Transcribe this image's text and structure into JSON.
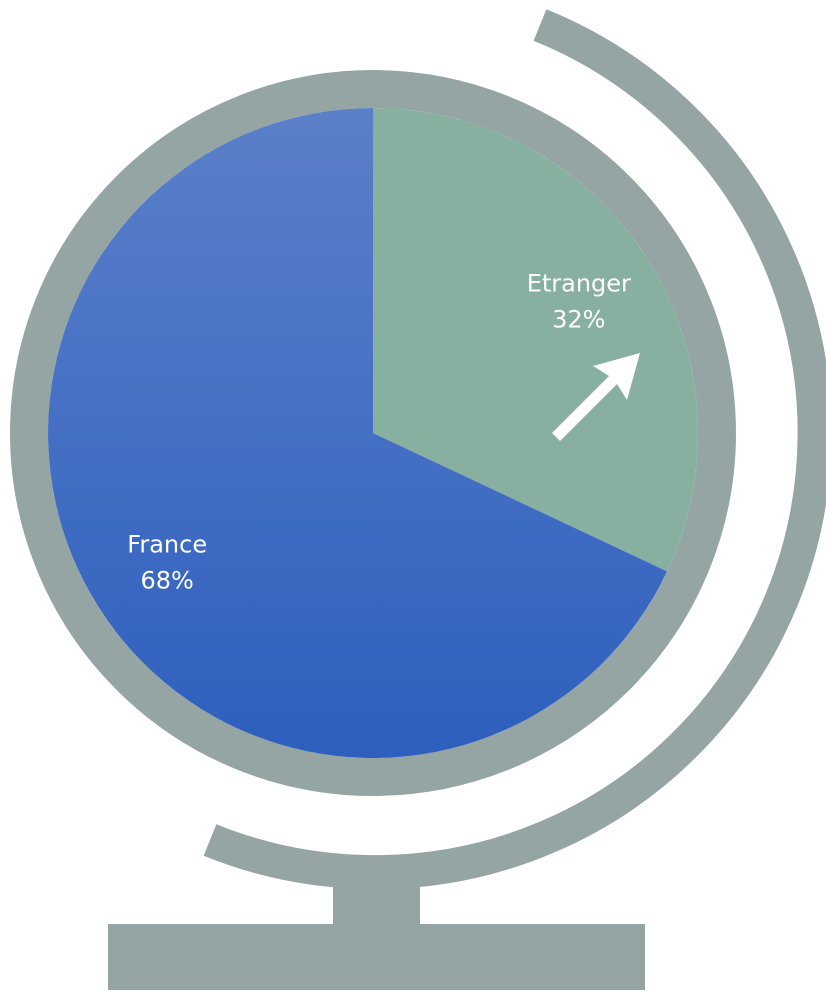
{
  "chart_data": {
    "type": "pie",
    "categories": [
      "Etranger",
      "France"
    ],
    "values": [
      32,
      68
    ],
    "value_labels": [
      "32%",
      "68%"
    ],
    "colors": [
      "#88b0a1",
      "#3f6bc6"
    ]
  }
}
